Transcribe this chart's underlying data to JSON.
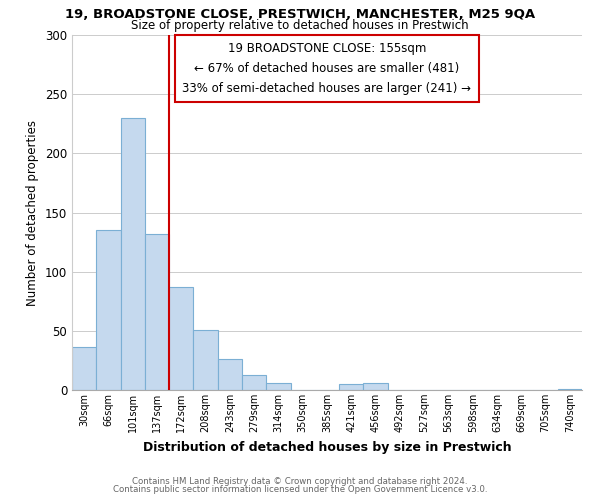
{
  "title": "19, BROADSTONE CLOSE, PRESTWICH, MANCHESTER, M25 9QA",
  "subtitle": "Size of property relative to detached houses in Prestwich",
  "xlabel": "Distribution of detached houses by size in Prestwich",
  "ylabel": "Number of detached properties",
  "bar_labels": [
    "30sqm",
    "66sqm",
    "101sqm",
    "137sqm",
    "172sqm",
    "208sqm",
    "243sqm",
    "279sqm",
    "314sqm",
    "350sqm",
    "385sqm",
    "421sqm",
    "456sqm",
    "492sqm",
    "527sqm",
    "563sqm",
    "598sqm",
    "634sqm",
    "669sqm",
    "705sqm",
    "740sqm"
  ],
  "bar_values": [
    36,
    135,
    230,
    132,
    87,
    51,
    26,
    13,
    6,
    0,
    0,
    5,
    6,
    0,
    0,
    0,
    0,
    0,
    0,
    0,
    1
  ],
  "bar_color": "#c5d9ee",
  "bar_edge_color": "#7bafd4",
  "vline_color": "#cc0000",
  "vline_x": 3.5,
  "ylim": [
    0,
    300
  ],
  "yticks": [
    0,
    50,
    100,
    150,
    200,
    250,
    300
  ],
  "annotation_title": "19 BROADSTONE CLOSE: 155sqm",
  "annotation_line1": "← 67% of detached houses are smaller (481)",
  "annotation_line2": "33% of semi-detached houses are larger (241) →",
  "footer_line1": "Contains HM Land Registry data © Crown copyright and database right 2024.",
  "footer_line2": "Contains public sector information licensed under the Open Government Licence v3.0.",
  "background_color": "#ffffff",
  "grid_color": "#cccccc"
}
